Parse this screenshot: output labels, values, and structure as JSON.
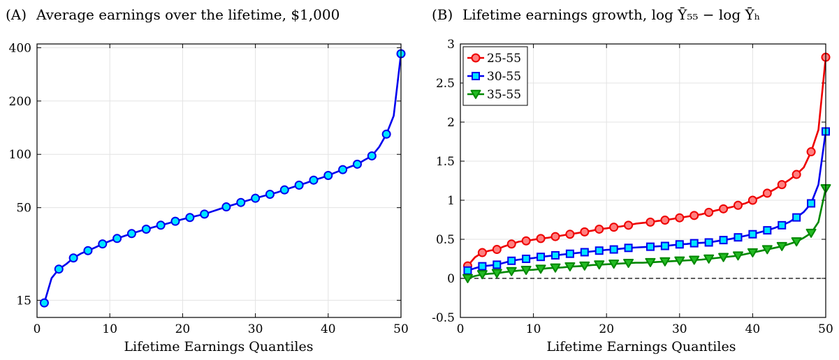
{
  "chart_data": [
    {
      "type": "line",
      "panel_label": "(A)",
      "title": "Average earnings over the lifetime, $1,000",
      "xlabel": "Lifetime Earnings Quantiles",
      "ylabel": "",
      "xlim": [
        0,
        50
      ],
      "ylim": [
        12,
        420
      ],
      "yscale": "log",
      "xticks": [
        0,
        10,
        20,
        30,
        40,
        50
      ],
      "xtick_labels": [
        "0",
        "10",
        "20",
        "30",
        "40",
        "50"
      ],
      "yticks": [
        15,
        50,
        100,
        200,
        400
      ],
      "ytick_labels": [
        "15",
        "50",
        "100",
        "200",
        "400"
      ],
      "grid": true,
      "series": [
        {
          "name": "",
          "color": "#0000ee",
          "marker": "circle",
          "marker_fill": "#00e5ff",
          "x": [
            1,
            2,
            3,
            4,
            5,
            6,
            7,
            8,
            9,
            10,
            11,
            12,
            13,
            14,
            15,
            16,
            17,
            18,
            19,
            20,
            21,
            22,
            23,
            24,
            25,
            26,
            27,
            28,
            29,
            30,
            31,
            32,
            33,
            34,
            35,
            36,
            37,
            38,
            39,
            40,
            41,
            42,
            43,
            44,
            45,
            46,
            47,
            48,
            49,
            50
          ],
          "y": [
            14.5,
            20,
            22.5,
            24,
            26,
            27.5,
            28.6,
            29.8,
            31.2,
            32.4,
            33.5,
            34.6,
            35.7,
            36.8,
            37.8,
            38.8,
            39.8,
            40.8,
            41.9,
            43,
            44,
            45,
            46,
            47.5,
            49,
            50.5,
            52,
            53.5,
            55,
            56.5,
            58,
            59.5,
            61,
            63,
            65,
            67,
            69,
            71.5,
            73.5,
            76,
            79,
            82,
            85,
            88,
            93,
            98,
            110,
            130,
            165,
            370
          ],
          "markers_at": [
            1,
            3,
            5,
            7,
            9,
            11,
            13,
            15,
            17,
            19,
            21,
            23,
            26,
            28,
            30,
            32,
            34,
            36,
            38,
            40,
            42,
            44,
            46,
            48,
            50
          ]
        }
      ]
    },
    {
      "type": "line",
      "panel_label": "(B)",
      "title": "Lifetime earnings growth, log Ȳ₅₅ − log Ȳₕ",
      "xlabel": "Lifetime Earnings Quantiles",
      "ylabel": "",
      "xlim": [
        0,
        50
      ],
      "ylim": [
        -0.5,
        3
      ],
      "xticks": [
        0,
        10,
        20,
        30,
        40,
        50
      ],
      "xtick_labels": [
        "0",
        "10",
        "20",
        "30",
        "40",
        "50"
      ],
      "yticks": [
        -0.5,
        0,
        0.5,
        1,
        1.5,
        2,
        2.5,
        3
      ],
      "ytick_labels": [
        "-0.5",
        "0",
        "0.5",
        "1",
        "1.5",
        "2",
        "2.5",
        "3"
      ],
      "grid": true,
      "reference_line": {
        "y": 0,
        "style": "dashed",
        "color": "#000000"
      },
      "legend_position": "top-left",
      "series": [
        {
          "name": "25-55",
          "color": "#ee0000",
          "marker": "circle",
          "marker_fill": "#ff8080",
          "x": [
            1,
            2,
            3,
            4,
            5,
            6,
            7,
            8,
            9,
            10,
            11,
            12,
            13,
            14,
            15,
            16,
            17,
            18,
            19,
            20,
            21,
            22,
            23,
            24,
            25,
            26,
            27,
            28,
            29,
            30,
            31,
            32,
            33,
            34,
            35,
            36,
            37,
            38,
            39,
            40,
            41,
            42,
            43,
            44,
            45,
            46,
            47,
            48,
            49,
            50
          ],
          "y": [
            0.16,
            0.27,
            0.33,
            0.355,
            0.37,
            0.41,
            0.44,
            0.47,
            0.48,
            0.495,
            0.51,
            0.52,
            0.535,
            0.55,
            0.565,
            0.58,
            0.595,
            0.61,
            0.63,
            0.64,
            0.655,
            0.665,
            0.68,
            0.7,
            0.71,
            0.72,
            0.735,
            0.745,
            0.76,
            0.775,
            0.79,
            0.805,
            0.82,
            0.845,
            0.87,
            0.89,
            0.91,
            0.935,
            0.96,
            1.0,
            1.04,
            1.09,
            1.14,
            1.2,
            1.26,
            1.33,
            1.42,
            1.62,
            1.9,
            2.83
          ],
          "markers_at": [
            1,
            3,
            5,
            7,
            9,
            11,
            13,
            15,
            17,
            19,
            21,
            23,
            26,
            28,
            30,
            32,
            34,
            36,
            38,
            40,
            42,
            44,
            46,
            48,
            50
          ]
        },
        {
          "name": "30-55",
          "color": "#0000ee",
          "marker": "square",
          "marker_fill": "#00e5ff",
          "x": [
            1,
            2,
            3,
            4,
            5,
            6,
            7,
            8,
            9,
            10,
            11,
            12,
            13,
            14,
            15,
            16,
            17,
            18,
            19,
            20,
            21,
            22,
            23,
            24,
            25,
            26,
            27,
            28,
            29,
            30,
            31,
            32,
            33,
            34,
            35,
            36,
            37,
            38,
            39,
            40,
            41,
            42,
            43,
            44,
            45,
            46,
            47,
            48,
            49,
            50
          ],
          "y": [
            0.1,
            0.13,
            0.155,
            0.165,
            0.175,
            0.2,
            0.225,
            0.24,
            0.25,
            0.26,
            0.275,
            0.285,
            0.295,
            0.305,
            0.315,
            0.325,
            0.335,
            0.345,
            0.355,
            0.365,
            0.37,
            0.38,
            0.39,
            0.395,
            0.4,
            0.405,
            0.41,
            0.415,
            0.425,
            0.435,
            0.44,
            0.45,
            0.455,
            0.46,
            0.475,
            0.49,
            0.505,
            0.525,
            0.545,
            0.565,
            0.59,
            0.615,
            0.645,
            0.68,
            0.72,
            0.78,
            0.85,
            0.96,
            1.2,
            1.88
          ],
          "markers_at": [
            1,
            3,
            5,
            7,
            9,
            11,
            13,
            15,
            17,
            19,
            21,
            23,
            26,
            28,
            30,
            32,
            34,
            36,
            38,
            40,
            42,
            44,
            46,
            48,
            50
          ]
        },
        {
          "name": "35-55",
          "color": "#008800",
          "marker": "triangle-down",
          "marker_fill": "#22bb22",
          "x": [
            1,
            2,
            3,
            4,
            5,
            6,
            7,
            8,
            9,
            10,
            11,
            12,
            13,
            14,
            15,
            16,
            17,
            18,
            19,
            20,
            21,
            22,
            23,
            24,
            25,
            26,
            27,
            28,
            29,
            30,
            31,
            32,
            33,
            34,
            35,
            36,
            37,
            38,
            39,
            40,
            41,
            42,
            43,
            44,
            45,
            46,
            47,
            48,
            49,
            50
          ],
          "y": [
            0.0,
            0.03,
            0.05,
            0.06,
            0.065,
            0.08,
            0.09,
            0.1,
            0.105,
            0.11,
            0.12,
            0.13,
            0.135,
            0.14,
            0.15,
            0.155,
            0.16,
            0.17,
            0.175,
            0.18,
            0.185,
            0.19,
            0.195,
            0.2,
            0.2,
            0.205,
            0.21,
            0.215,
            0.22,
            0.225,
            0.23,
            0.235,
            0.24,
            0.25,
            0.26,
            0.27,
            0.28,
            0.29,
            0.31,
            0.33,
            0.35,
            0.37,
            0.39,
            0.41,
            0.44,
            0.47,
            0.52,
            0.58,
            0.72,
            1.15
          ],
          "markers_at": [
            1,
            3,
            5,
            7,
            9,
            11,
            13,
            15,
            17,
            19,
            21,
            23,
            26,
            28,
            30,
            32,
            34,
            36,
            38,
            40,
            42,
            44,
            46,
            48,
            50
          ]
        }
      ]
    }
  ]
}
